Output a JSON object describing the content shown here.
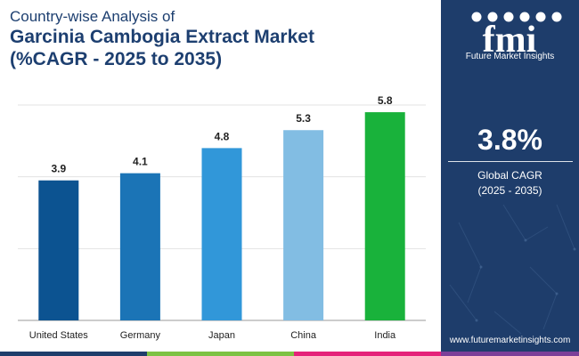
{
  "header": {
    "line1": "Country-wise Analysis of",
    "line2": "Garcinia Cambogia Extract Market",
    "line3": "(%CAGR - 2025 to 2035)"
  },
  "sidebar": {
    "logo_text": "fmi",
    "logo_sub": "Future Market Insights",
    "cagr_value": "3.8%",
    "cagr_label_line1": "Global CAGR",
    "cagr_label_line2": "(2025 - 2035)",
    "website": "www.futuremarketinsights.com",
    "bg_color": "#1e3d6b"
  },
  "chart_data": {
    "type": "bar",
    "title": "",
    "xlabel": "",
    "ylabel": "",
    "categories": [
      "United States",
      "Germany",
      "Japan",
      "China",
      "India"
    ],
    "values": [
      3.9,
      4.1,
      4.8,
      5.3,
      5.8
    ],
    "value_labels": [
      "3.9",
      "4.1",
      "4.8",
      "5.3",
      "5.8"
    ],
    "colors": [
      "#0c5391",
      "#1b74b6",
      "#3197d9",
      "#82bde3",
      "#19b23b"
    ],
    "ylim": [
      0,
      6
    ],
    "grid": true,
    "legend": "none"
  },
  "footer_colors": [
    "#1e3d6b",
    "#7dc243",
    "#e5227a",
    "#7c3f98"
  ]
}
